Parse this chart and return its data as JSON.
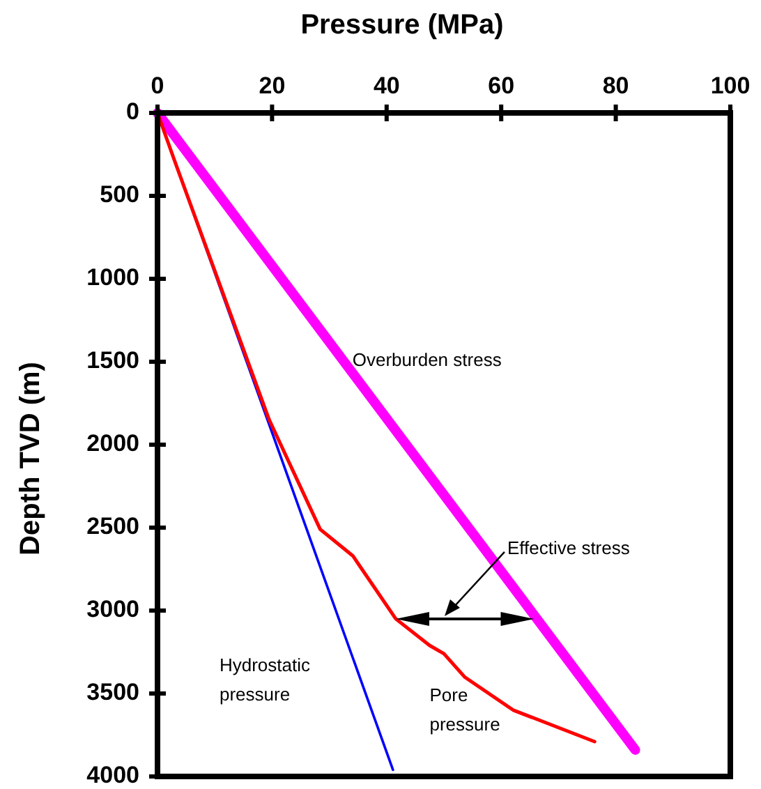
{
  "chart_data": {
    "type": "line",
    "xlabel": "Pressure (MPa)",
    "ylabel": "Depth TVD (m)",
    "xlim": [
      0,
      100
    ],
    "xticks": [
      0,
      20,
      40,
      60,
      80,
      100
    ],
    "ylim": [
      4000,
      0
    ],
    "yticks": [
      0,
      500,
      1000,
      1500,
      2000,
      2500,
      3000,
      3500,
      4000
    ],
    "grid": false,
    "marker": "none",
    "line_style": "solid",
    "series": [
      {
        "name": "Overburden stress",
        "color": "#ff00ff",
        "x": [
          0,
          83.4
        ],
        "values": [
          0,
          3840
        ]
      },
      {
        "name": "Hydrostatic pressure",
        "color": "#0000ff",
        "x": [
          0,
          41.1
        ],
        "values": [
          0,
          3960
        ]
      },
      {
        "name": "Pore pressure",
        "color": "#ff0000",
        "x": [
          0,
          3,
          19.5,
          28.4,
          34.1,
          41.6,
          47.5,
          50,
          53.6,
          62.1,
          76.3
        ],
        "values": [
          0,
          290,
          1850,
          2510,
          2670,
          3050,
          3210,
          3260,
          3400,
          3600,
          3790
        ]
      }
    ],
    "annotations": [
      "Effective stress"
    ]
  }
}
